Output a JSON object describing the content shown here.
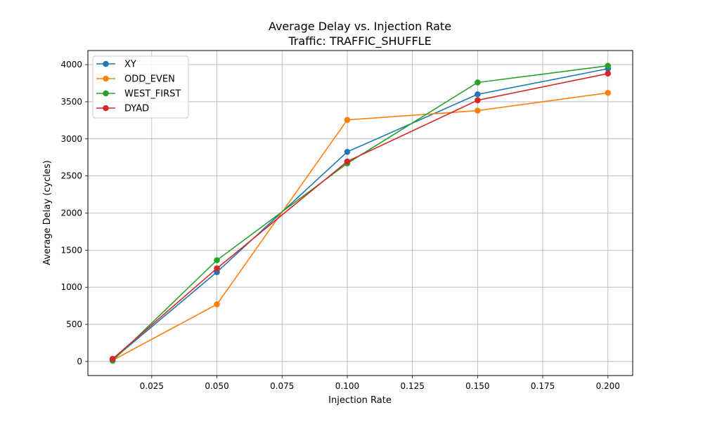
{
  "chart_data": {
    "type": "line",
    "title": "Average Delay vs. Injection Rate",
    "subtitle": "Traffic: TRAFFIC_SHUFFLE",
    "xlabel": "Injection Rate",
    "ylabel": "Average Delay (cycles)",
    "x": [
      0.01,
      0.05,
      0.1,
      0.15,
      0.2
    ],
    "xlim": [
      0.0005,
      0.2095
    ],
    "ylim": [
      -190,
      4190
    ],
    "xticks": [
      0.025,
      0.05,
      0.075,
      0.1,
      0.125,
      0.15,
      0.175,
      0.2
    ],
    "xtick_labels": [
      "0.025",
      "0.050",
      "0.075",
      "0.100",
      "0.125",
      "0.150",
      "0.175",
      "0.200"
    ],
    "yticks": [
      0,
      500,
      1000,
      1500,
      2000,
      2500,
      3000,
      3500,
      4000
    ],
    "ytick_labels": [
      "0",
      "500",
      "1000",
      "1500",
      "2000",
      "2500",
      "3000",
      "3500",
      "4000"
    ],
    "grid": true,
    "legend_position": "top-left",
    "series": [
      {
        "name": "XY",
        "color": "#1f77b4",
        "values": [
          25,
          1205,
          2825,
          3600,
          3945
        ]
      },
      {
        "name": "ODD_EVEN",
        "color": "#ff7f0e",
        "values": [
          15,
          770,
          3255,
          3380,
          3620
        ]
      },
      {
        "name": "WEST_FIRST",
        "color": "#2ca02c",
        "values": [
          10,
          1365,
          2670,
          3760,
          3985
        ]
      },
      {
        "name": "DYAD",
        "color": "#d62728",
        "values": [
          35,
          1255,
          2695,
          3520,
          3880
        ]
      }
    ]
  }
}
